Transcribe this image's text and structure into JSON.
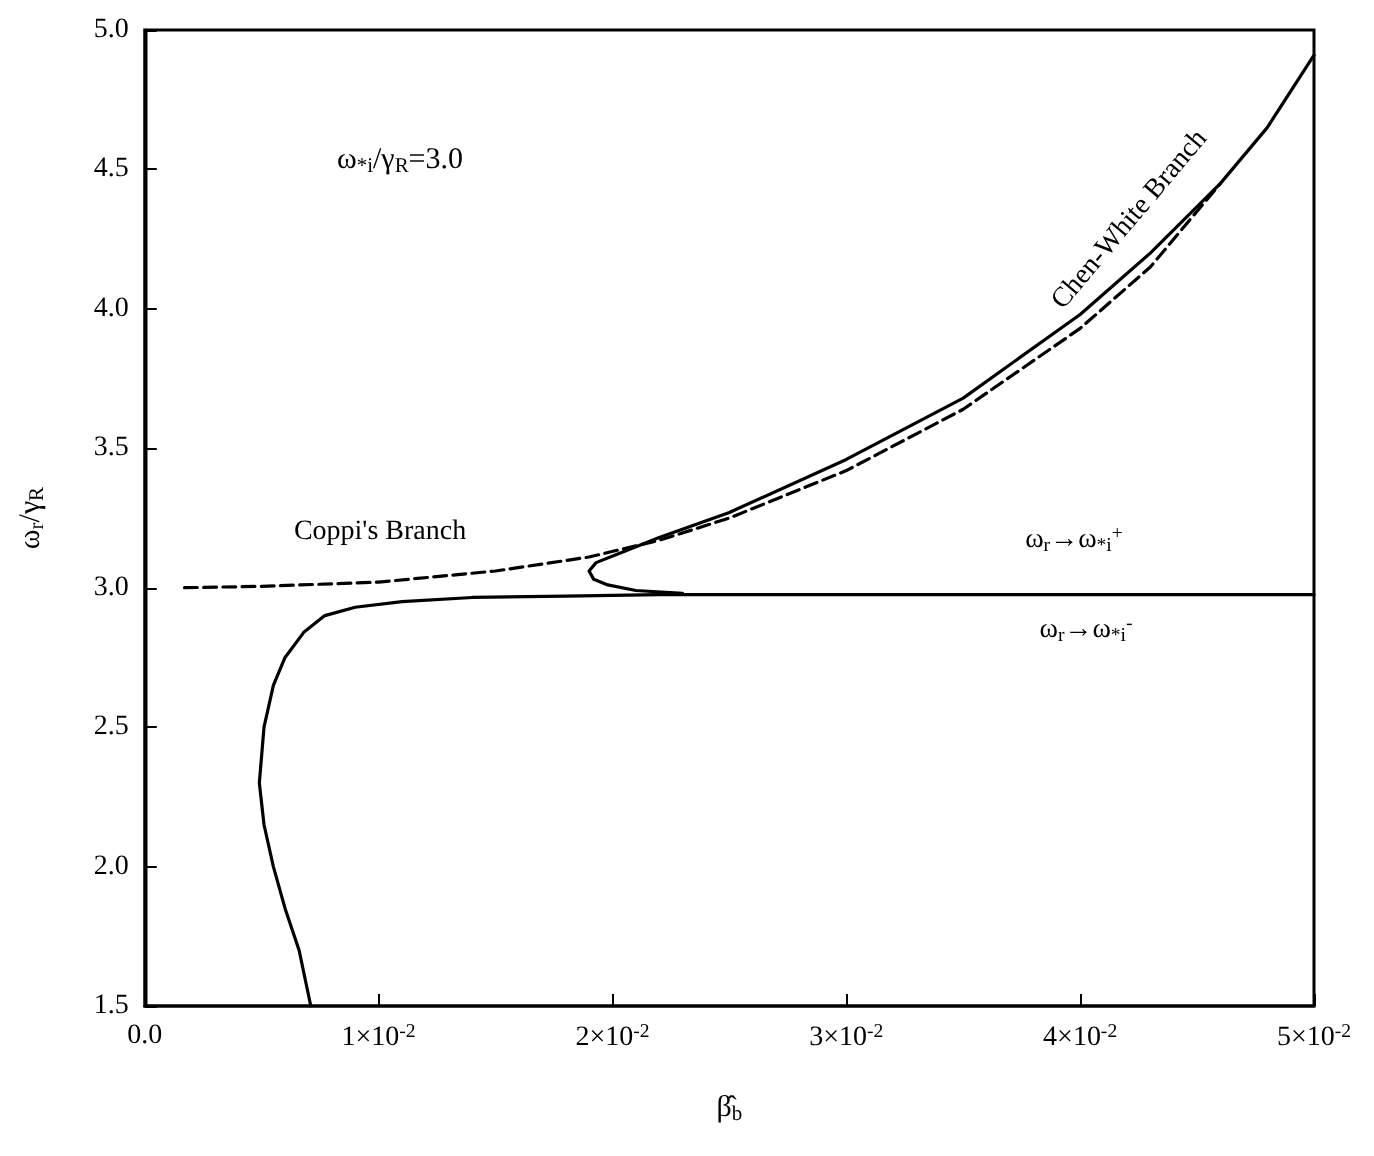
{
  "chart_data": {
    "type": "line",
    "xlabel": "β̂$_{b}$",
    "ylabel": "ω$_{r}$/γ$_{R}$",
    "xlim": [
      0,
      0.05
    ],
    "xticks": [
      {
        "value": 0,
        "label": "0.0"
      },
      {
        "value": 0.01,
        "label": "1×10$^{-2}$"
      },
      {
        "value": 0.02,
        "label": "2×10$^{-2}$"
      },
      {
        "value": 0.03,
        "label": "3×10$^{-2}$"
      },
      {
        "value": 0.04,
        "label": "4×10$^{-2}$"
      },
      {
        "value": 0.05,
        "label": "5×10$^{-2}$"
      }
    ],
    "ylim": [
      1.5,
      5.0
    ],
    "yticks": [
      {
        "value": 1.5,
        "label": "1.5"
      },
      {
        "value": 2,
        "label": "2.0"
      },
      {
        "value": 2.5,
        "label": "2.5"
      },
      {
        "value": 3,
        "label": "3.0"
      },
      {
        "value": 3.5,
        "label": "3.5"
      },
      {
        "value": 4,
        "label": "4.0"
      },
      {
        "value": 4.5,
        "label": "4.5"
      },
      {
        "value": 5,
        "label": "5.0"
      }
    ],
    "marker": "none",
    "series": [
      {
        "color": "#000000",
        "line_style": "solid",
        "x": [
          0.0071,
          0.0066,
          0.006,
          0.0055,
          0.0051,
          0.0049,
          0.005,
          0.0051,
          0.0055,
          0.006,
          0.0068,
          0.0077,
          0.009,
          0.011,
          0.014,
          0.018,
          0.022,
          0.03,
          0.04,
          0.05
        ],
        "values": [
          1.5,
          1.7,
          1.85,
          2.0,
          2.15,
          2.3,
          2.4,
          2.5,
          2.65,
          2.75,
          2.84,
          2.9,
          2.93,
          2.95,
          2.965,
          2.97,
          2.975,
          2.975,
          2.975,
          2.975
        ]
      },
      {
        "color": "#000000",
        "line_style": "solid",
        "x": [
          0.023,
          0.021,
          0.0198,
          0.0192,
          0.019,
          0.0193,
          0.0202,
          0.022,
          0.025,
          0.03,
          0.035,
          0.04,
          0.043,
          0.046,
          0.048,
          0.05
        ],
        "values": [
          2.98,
          2.99,
          3.01,
          3.03,
          3.06,
          3.09,
          3.12,
          3.18,
          3.27,
          3.46,
          3.68,
          3.98,
          4.2,
          4.45,
          4.65,
          4.91
        ]
      },
      {
        "color": "#000000",
        "line_style": "dashed",
        "x": [
          0.0017,
          0.005,
          0.01,
          0.015,
          0.019,
          0.022,
          0.025,
          0.03,
          0.035,
          0.04,
          0.043,
          0.046
        ],
        "values": [
          3.0,
          3.005,
          3.02,
          3.06,
          3.11,
          3.17,
          3.25,
          3.42,
          3.64,
          3.93,
          4.15,
          4.45
        ]
      }
    ],
    "annotations": [
      "ω$_{*i}$/γ$_{R}$=3.0",
      "Coppi's Branch",
      "Chen-White Branch",
      "ω$_{r}$→ω$_{*i}$$^{+}$",
      "ω$_{r}$→ω$_{*i}$$^{-}$"
    ]
  }
}
